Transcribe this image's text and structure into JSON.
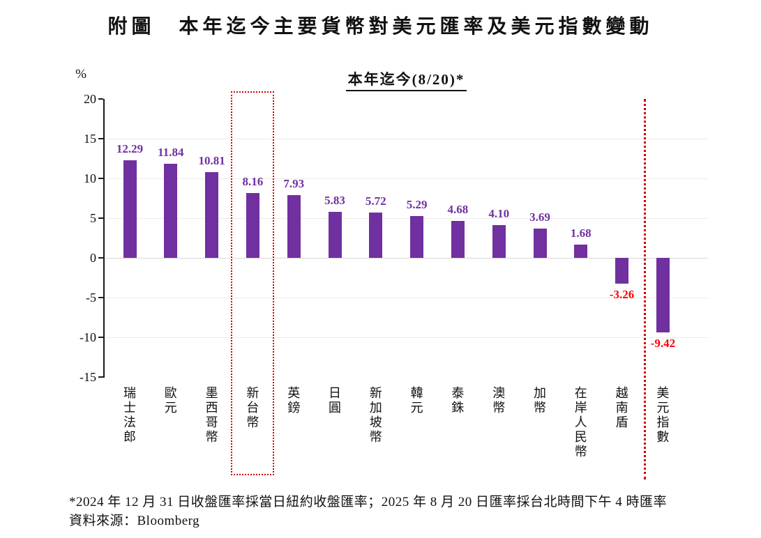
{
  "title": "附圖　本年迄今主要貨幣對美元匯率及美元指數變動",
  "subtitle": "本年迄今(8/20)*",
  "y_axis": {
    "unit_label": "%",
    "ticks": [
      20,
      15,
      10,
      5,
      0,
      -5,
      -10,
      -15
    ]
  },
  "chart_data": {
    "type": "bar",
    "title": "附圖 本年迄今主要貨幣對美元匯率及美元指數變動",
    "subtitle": "本年迄今(8/20)*",
    "ylabel": "%",
    "ylim": [
      -15,
      20
    ],
    "grid": true,
    "categories": [
      "瑞士法郎",
      "歐元",
      "墨西哥幣",
      "新台幣",
      "英鎊",
      "日圓",
      "新加坡幣",
      "韓元",
      "泰銖",
      "澳幣",
      "加幣",
      "在岸人民幣",
      "越南盾",
      "美元指數"
    ],
    "values": [
      12.29,
      11.84,
      10.81,
      8.16,
      7.93,
      5.83,
      5.72,
      5.29,
      4.68,
      4.1,
      3.69,
      1.68,
      -3.26,
      -9.42
    ],
    "highlight_box_category": "新台幣",
    "separator_before_category": "美元指數",
    "colors": {
      "bar": "#7030A0",
      "positive_label": "#7030A0",
      "negative_label": "#FF0000",
      "highlight": "#CC0000"
    }
  },
  "footnotes": {
    "line1": "*2024 年 12 月 31 日收盤匯率採當日紐約收盤匯率；2025 年 8 月 20 日匯率採台北時間下午 4 時匯率",
    "line2": "資料來源：Bloomberg"
  }
}
